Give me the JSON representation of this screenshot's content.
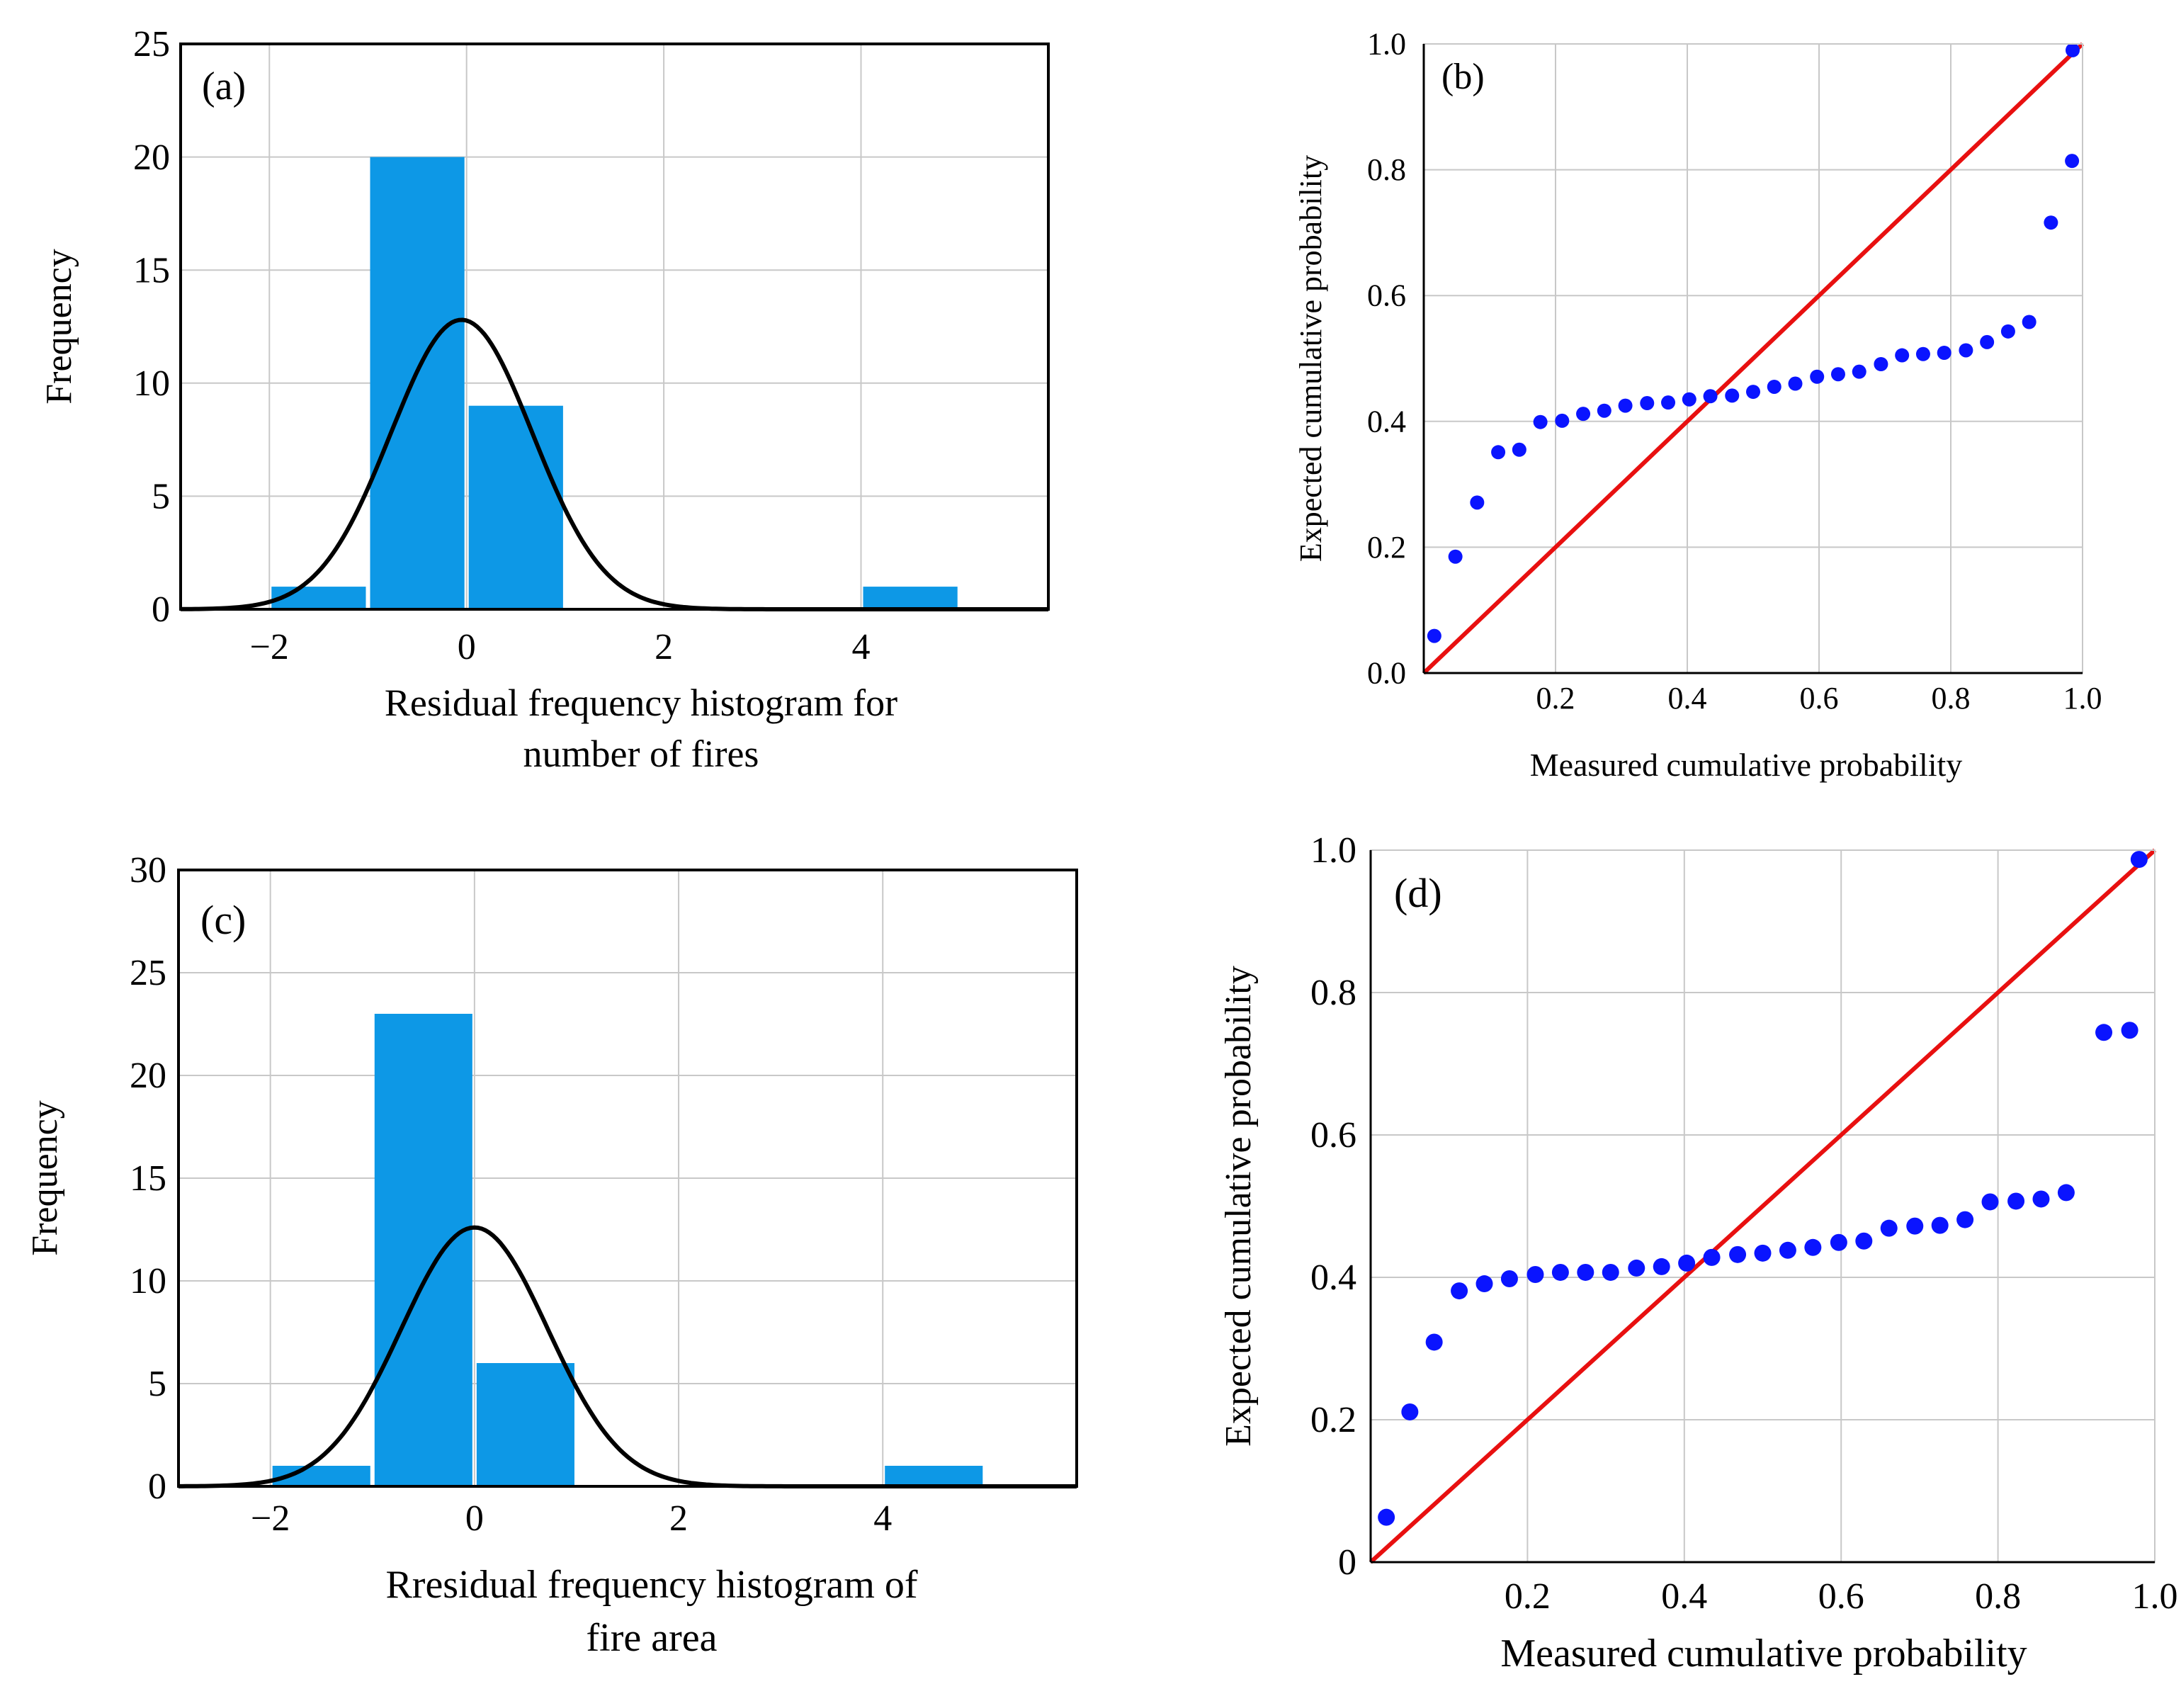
{
  "colors": {
    "bar": "#0d98e6",
    "curve": "#000000",
    "grid": "#c8c8c8",
    "axis": "#000000",
    "point": "#0a14ff",
    "reference_line": "#e81010"
  },
  "chart_data": [
    {
      "panel": "a",
      "type": "bar",
      "panel_label": "(a)",
      "title": "",
      "xlabel": "Residual frequency histogram for",
      "xlabel_line2": "number of fires",
      "ylabel": "Frequency",
      "xlim": [
        -2.9,
        5.9
      ],
      "ylim": [
        0,
        25
      ],
      "grid": true,
      "x_ticks": [
        -2,
        0,
        2,
        4
      ],
      "x_tick_labels": [
        "−2",
        "0",
        "2",
        "4"
      ],
      "y_ticks": [
        0,
        5,
        10,
        15,
        20,
        25
      ],
      "y_tick_labels": [
        "0",
        "5",
        "10",
        "15",
        "20",
        "25"
      ],
      "bins": [
        {
          "from": -2,
          "to": -1,
          "value": 1
        },
        {
          "from": -1,
          "to": 0,
          "value": 20
        },
        {
          "from": 0,
          "to": 1,
          "value": 9
        },
        {
          "from": 4,
          "to": 5,
          "value": 1
        }
      ],
      "normal_curve": {
        "mean": -0.05,
        "sd": 0.72,
        "peak": 12.8
      }
    },
    {
      "panel": "b",
      "type": "scatter",
      "panel_label": "(b)",
      "title": "",
      "xlabel": "Measured cumulative probability",
      "ylabel": "Expected cumulative probability",
      "xlim": [
        0,
        1
      ],
      "ylim": [
        0,
        1
      ],
      "grid": true,
      "x_ticks": [
        0.2,
        0.4,
        0.6,
        0.8,
        1.0
      ],
      "x_tick_labels": [
        "0.2",
        "0.4",
        "0.6",
        "0.8",
        "1.0"
      ],
      "y_ticks": [
        0,
        0.2,
        0.4,
        0.6,
        0.8,
        1.0
      ],
      "y_tick_labels": [
        "0.0",
        "0.2",
        "0.4",
        "0.6",
        "0.8",
        "1.0"
      ],
      "reference_line": [
        [
          0,
          0
        ],
        [
          1,
          1
        ]
      ],
      "points": [
        [
          0.016,
          0.059
        ],
        [
          0.048,
          0.185
        ],
        [
          0.081,
          0.271
        ],
        [
          0.113,
          0.351
        ],
        [
          0.145,
          0.355
        ],
        [
          0.177,
          0.399
        ],
        [
          0.21,
          0.401
        ],
        [
          0.242,
          0.412
        ],
        [
          0.274,
          0.417
        ],
        [
          0.306,
          0.425
        ],
        [
          0.339,
          0.429
        ],
        [
          0.371,
          0.43
        ],
        [
          0.403,
          0.435
        ],
        [
          0.435,
          0.44
        ],
        [
          0.468,
          0.441
        ],
        [
          0.5,
          0.447
        ],
        [
          0.532,
          0.455
        ],
        [
          0.564,
          0.46
        ],
        [
          0.597,
          0.471
        ],
        [
          0.629,
          0.475
        ],
        [
          0.661,
          0.479
        ],
        [
          0.694,
          0.491
        ],
        [
          0.726,
          0.505
        ],
        [
          0.758,
          0.507
        ],
        [
          0.79,
          0.509
        ],
        [
          0.823,
          0.513
        ],
        [
          0.855,
          0.526
        ],
        [
          0.887,
          0.543
        ],
        [
          0.919,
          0.558
        ],
        [
          0.952,
          0.716
        ],
        [
          0.984,
          0.814
        ],
        [
          1.016,
          0.99
        ]
      ]
    },
    {
      "panel": "c",
      "type": "bar",
      "panel_label": "(c)",
      "title": "",
      "xlabel": "Rresidual frequency histogram of",
      "xlabel_line2": "fire area",
      "ylabel": "Frequency",
      "xlim": [
        -2.9,
        5.9
      ],
      "ylim": [
        0,
        30
      ],
      "grid": true,
      "x_ticks": [
        -2,
        0,
        2,
        4
      ],
      "x_tick_labels": [
        "−2",
        "0",
        "2",
        "4"
      ],
      "y_ticks": [
        0,
        5,
        10,
        15,
        20,
        25,
        30
      ],
      "y_tick_labels": [
        "0",
        "5",
        "10",
        "15",
        "20",
        "25",
        "30"
      ],
      "bins": [
        {
          "from": -2,
          "to": -1,
          "value": 1
        },
        {
          "from": -1,
          "to": 0,
          "value": 23
        },
        {
          "from": 0,
          "to": 1,
          "value": 6
        },
        {
          "from": 4,
          "to": 5,
          "value": 1
        }
      ],
      "normal_curve": {
        "mean": 0.0,
        "sd": 0.72,
        "peak": 12.6
      }
    },
    {
      "panel": "d",
      "type": "scatter",
      "panel_label": "(d)",
      "title": "",
      "xlabel": "Measured cumulative probability",
      "ylabel": "Expected cumulative probability",
      "xlim": [
        0,
        1
      ],
      "ylim": [
        0,
        1
      ],
      "grid": true,
      "x_ticks": [
        0.2,
        0.4,
        0.6,
        0.8,
        1.0
      ],
      "x_tick_labels": [
        "0.2",
        "0.4",
        "0.6",
        "0.8",
        "1.0"
      ],
      "y_ticks": [
        0,
        0.2,
        0.4,
        0.6,
        0.8,
        1.0
      ],
      "y_tick_labels": [
        "0",
        "0.2",
        "0.4",
        "0.6",
        "0.8",
        "1.0"
      ],
      "reference_line": [
        [
          0,
          0
        ],
        [
          1,
          1
        ]
      ],
      "points": [
        [
          0.02,
          0.063
        ],
        [
          0.05,
          0.211
        ],
        [
          0.081,
          0.309
        ],
        [
          0.113,
          0.381
        ],
        [
          0.145,
          0.391
        ],
        [
          0.177,
          0.398
        ],
        [
          0.21,
          0.404
        ],
        [
          0.242,
          0.407
        ],
        [
          0.274,
          0.407
        ],
        [
          0.306,
          0.407
        ],
        [
          0.339,
          0.413
        ],
        [
          0.371,
          0.415
        ],
        [
          0.403,
          0.42
        ],
        [
          0.435,
          0.428
        ],
        [
          0.468,
          0.432
        ],
        [
          0.5,
          0.434
        ],
        [
          0.532,
          0.438
        ],
        [
          0.564,
          0.442
        ],
        [
          0.597,
          0.449
        ],
        [
          0.629,
          0.451
        ],
        [
          0.661,
          0.469
        ],
        [
          0.694,
          0.472
        ],
        [
          0.726,
          0.473
        ],
        [
          0.758,
          0.481
        ],
        [
          0.79,
          0.506
        ],
        [
          0.823,
          0.507
        ],
        [
          0.855,
          0.51
        ],
        [
          0.887,
          0.519
        ],
        [
          0.935,
          0.744
        ],
        [
          0.968,
          0.747
        ],
        [
          0.98,
          0.987
        ]
      ]
    }
  ]
}
